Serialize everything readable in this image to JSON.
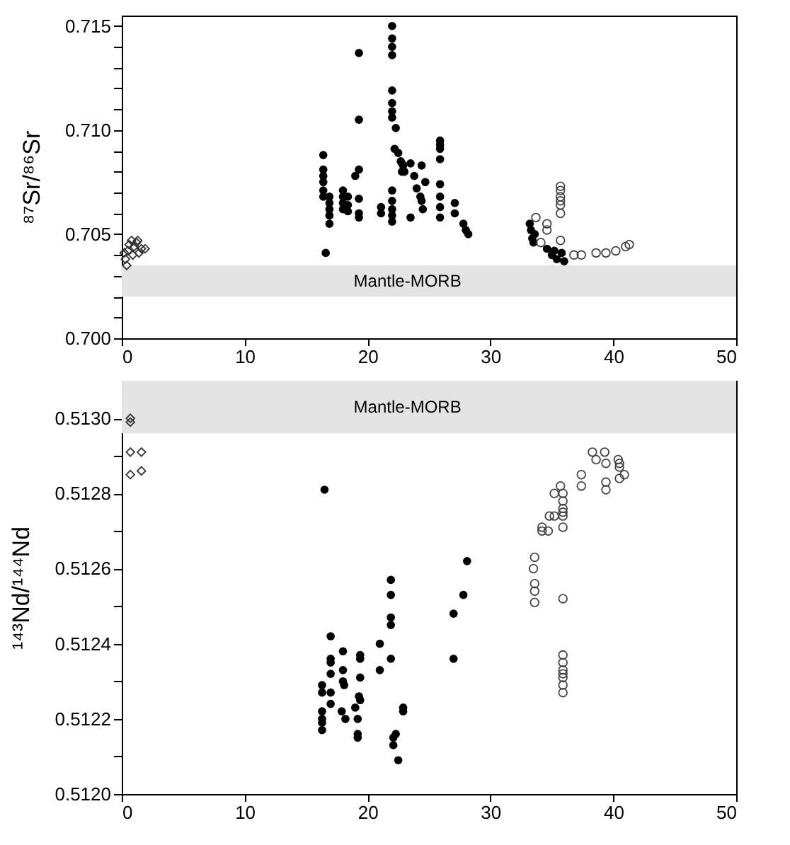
{
  "chart_data": [
    {
      "type": "scatter",
      "ylabel": "⁸⁷Sr/⁸⁶Sr",
      "xlim": [
        0,
        50
      ],
      "xticks": [
        0,
        10,
        20,
        30,
        40,
        50
      ],
      "ylim": [
        0.7,
        0.7155
      ],
      "yticks": [
        {
          "value": 0.7,
          "label": "0.700"
        },
        {
          "value": 0.701,
          "label": null
        },
        {
          "value": 0.702,
          "label": null
        },
        {
          "value": 0.703,
          "label": null
        },
        {
          "value": 0.704,
          "label": null
        },
        {
          "value": 0.705,
          "label": "0.705"
        },
        {
          "value": 0.706,
          "label": null
        },
        {
          "value": 0.707,
          "label": null
        },
        {
          "value": 0.708,
          "label": null
        },
        {
          "value": 0.709,
          "label": null
        },
        {
          "value": 0.71,
          "label": "0.710"
        },
        {
          "value": 0.711,
          "label": null
        },
        {
          "value": 0.712,
          "label": null
        },
        {
          "value": 0.713,
          "label": null
        },
        {
          "value": 0.714,
          "label": null
        },
        {
          "value": 0.715,
          "label": "0.715"
        }
      ],
      "bands": [
        {
          "axis": "y",
          "from": 0.702,
          "to": 0.7035,
          "label": "Mantle-MORB",
          "color": "#e4e4e4"
        }
      ],
      "series": [
        {
          "color": "#333333",
          "marker": "diamond",
          "x": [
            0.3,
            0.5,
            0.6,
            0.8,
            1.0,
            1.2,
            1.4,
            1.6,
            1.9,
            0.4,
            0.9,
            1.3,
            0.2
          ],
          "values": [
            0.7038,
            0.7042,
            0.7045,
            0.7047,
            0.7044,
            0.7046,
            0.7041,
            0.7043,
            0.7043,
            0.7035,
            0.704,
            0.7047,
            0.7041
          ]
        },
        {
          "color": "#000000",
          "marker": "circle",
          "x": [
            16.4,
            16.4,
            16.4,
            16.4,
            16.4,
            16.4,
            16.9,
            16.9,
            16.9,
            16.9,
            16.9,
            16.6,
            18.0,
            18.0,
            18.0,
            18.0,
            18.4,
            18.4,
            18.4,
            19.3,
            19.3,
            19.3,
            19.0,
            19.3,
            19.3,
            19.3,
            21.1,
            21.1,
            22.0,
            22.0,
            22.0,
            22.0,
            22.0,
            22.0,
            22.0,
            22.0,
            22.3,
            22.2,
            22.5,
            22.7,
            22.9,
            23.0,
            22.0,
            22.0,
            22.0,
            22.0,
            22.0,
            22.8,
            22.8,
            23.5,
            23.8,
            24.0,
            24.3,
            24.7,
            24.5,
            23.5,
            24.4,
            24.4,
            25.9,
            25.9,
            25.9,
            25.9,
            25.9,
            25.9,
            25.9,
            25.9,
            27.1,
            27.1,
            27.8,
            28.0,
            28.2,
            33.2,
            33.3,
            33.4,
            33.5,
            33.6,
            34.6,
            35.0,
            35.4,
            35.8,
            36.0,
            35.2
          ],
          "values": [
            0.7088,
            0.7081,
            0.7078,
            0.7075,
            0.7071,
            0.7068,
            0.7068,
            0.7065,
            0.7062,
            0.7059,
            0.7055,
            0.7041,
            0.7071,
            0.7068,
            0.7065,
            0.7062,
            0.7068,
            0.7064,
            0.7061,
            0.7137,
            0.7105,
            0.7081,
            0.7078,
            0.7067,
            0.706,
            0.7058,
            0.7063,
            0.706,
            0.715,
            0.7144,
            0.714,
            0.7136,
            0.7119,
            0.7113,
            0.7109,
            0.7106,
            0.7101,
            0.7091,
            0.7089,
            0.7085,
            0.7083,
            0.708,
            0.7071,
            0.7066,
            0.7062,
            0.7059,
            0.7056,
            0.7084,
            0.708,
            0.7084,
            0.7078,
            0.7072,
            0.7068,
            0.7075,
            0.7062,
            0.7058,
            0.7083,
            0.7066,
            0.7095,
            0.7093,
            0.7091,
            0.7086,
            0.7074,
            0.7068,
            0.7063,
            0.7058,
            0.7065,
            0.706,
            0.7055,
            0.7052,
            0.705,
            0.7055,
            0.7052,
            0.7048,
            0.7046,
            0.705,
            0.7043,
            0.704,
            0.7038,
            0.7041,
            0.7037,
            0.7042
          ]
        },
        {
          "color": "#444444",
          "marker": "circle",
          "x": [
            33.7,
            34.6,
            34.6,
            34.1,
            35.7,
            35.7,
            35.7,
            35.7,
            35.7,
            35.7,
            35.7,
            36.8,
            37.4,
            38.6,
            39.4,
            40.2,
            41.0,
            41.3
          ],
          "values": [
            0.7058,
            0.7055,
            0.7052,
            0.7046,
            0.7073,
            0.7071,
            0.7068,
            0.7066,
            0.7064,
            0.706,
            0.7047,
            0.704,
            0.704,
            0.7041,
            0.7041,
            0.7042,
            0.7044,
            0.7045
          ]
        }
      ]
    },
    {
      "type": "scatter",
      "ylabel": "¹⁴³Nd/¹⁴⁴Nd",
      "xlim": [
        0,
        50
      ],
      "xticks": [
        0,
        10,
        20,
        30,
        40,
        50
      ],
      "ylim": [
        0.512,
        0.5131
      ],
      "yticks": [
        {
          "value": 0.512,
          "label": "0.5120"
        },
        {
          "value": 0.5121,
          "label": null
        },
        {
          "value": 0.5122,
          "label": "0.5122"
        },
        {
          "value": 0.5123,
          "label": null
        },
        {
          "value": 0.5124,
          "label": "0.5124"
        },
        {
          "value": 0.5125,
          "label": null
        },
        {
          "value": 0.5126,
          "label": "0.5126"
        },
        {
          "value": 0.5127,
          "label": null
        },
        {
          "value": 0.5128,
          "label": "0.5128"
        },
        {
          "value": 0.5129,
          "label": null
        },
        {
          "value": 0.513,
          "label": "0.5130"
        }
      ],
      "bands": [
        {
          "axis": "y",
          "from": 0.51296,
          "to": 0.5131,
          "label": "Mantle-MORB",
          "color": "#e4e4e4"
        }
      ],
      "series": [
        {
          "color": "#333333",
          "marker": "diamond",
          "x": [
            0.7,
            0.7,
            0.7,
            1.6,
            0.7,
            1.6
          ],
          "values": [
            0.513,
            0.51299,
            0.51291,
            0.51291,
            0.51285,
            0.51286
          ]
        },
        {
          "color": "#000000",
          "marker": "circle",
          "x": [
            16.5,
            16.3,
            16.3,
            16.3,
            16.3,
            16.3,
            16.3,
            17.0,
            17.0,
            17.0,
            17.0,
            17.0,
            17.0,
            18.0,
            18.0,
            18.0,
            18.1,
            17.9,
            18.2,
            19.4,
            19.4,
            19.4,
            19.3,
            19.4,
            19.0,
            19.2,
            19.2,
            19.2,
            21.0,
            21.0,
            21.9,
            21.9,
            21.9,
            21.9,
            21.9,
            22.1,
            22.3,
            22.1,
            22.5,
            22.9,
            22.9,
            27.0,
            27.0,
            27.8,
            28.1
          ],
          "values": [
            0.51281,
            0.51229,
            0.51227,
            0.51222,
            0.5122,
            0.51219,
            0.51217,
            0.51242,
            0.51236,
            0.51235,
            0.51232,
            0.51227,
            0.51224,
            0.51238,
            0.51233,
            0.5123,
            0.51229,
            0.51222,
            0.5122,
            0.51237,
            0.51236,
            0.51231,
            0.51226,
            0.51225,
            0.51223,
            0.5122,
            0.51216,
            0.51215,
            0.5124,
            0.51233,
            0.51257,
            0.51253,
            0.51247,
            0.51245,
            0.51236,
            0.51215,
            0.51216,
            0.51213,
            0.51209,
            0.51223,
            0.51222,
            0.51248,
            0.51236,
            0.51253,
            0.51262
          ]
        },
        {
          "color": "#444444",
          "marker": "circle",
          "x": [
            33.6,
            33.5,
            33.6,
            33.6,
            33.6,
            34.2,
            34.2,
            34.7,
            34.8,
            35.2,
            35.2,
            35.7,
            35.9,
            35.9,
            35.9,
            35.9,
            35.9,
            35.9,
            35.9,
            35.9,
            35.9,
            35.9,
            35.9,
            35.9,
            35.9,
            35.9,
            37.4,
            37.4,
            38.6,
            39.4,
            39.4,
            39.4,
            40.5,
            40.5,
            40.5,
            40.9,
            38.3,
            39.3,
            40.4
          ],
          "values": [
            0.51263,
            0.5126,
            0.51256,
            0.51254,
            0.51251,
            0.51271,
            0.5127,
            0.5127,
            0.51274,
            0.51274,
            0.5128,
            0.51282,
            0.5128,
            0.51278,
            0.51276,
            0.51275,
            0.51274,
            0.51271,
            0.51252,
            0.51237,
            0.51235,
            0.51233,
            0.51232,
            0.51231,
            0.51229,
            0.51227,
            0.51285,
            0.51282,
            0.51289,
            0.51288,
            0.51283,
            0.51281,
            0.51288,
            0.51287,
            0.51284,
            0.51285,
            0.51291,
            0.51291,
            0.51289
          ]
        }
      ]
    }
  ]
}
